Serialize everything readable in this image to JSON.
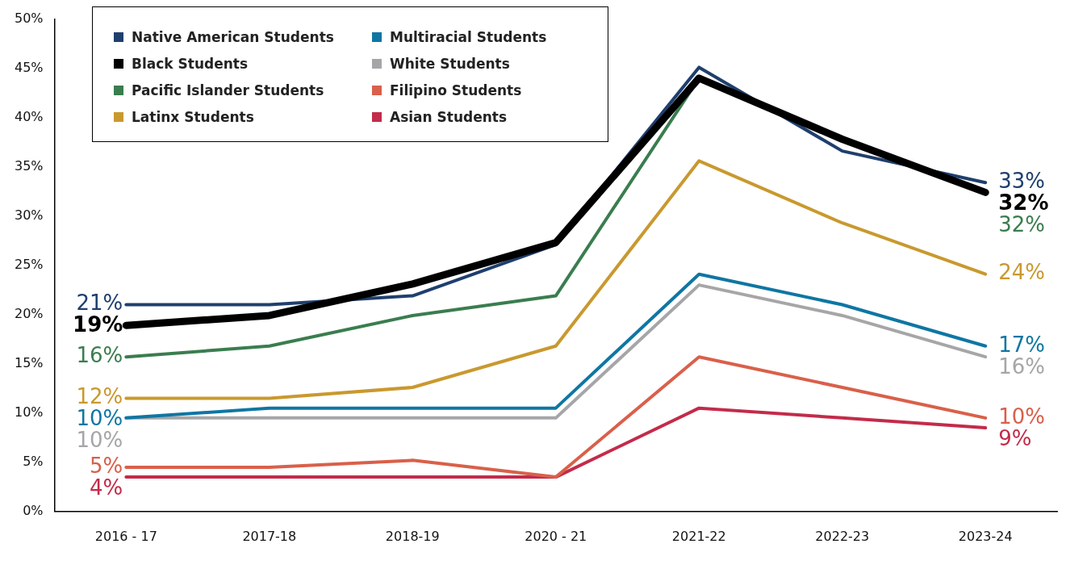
{
  "chart_data": {
    "type": "line",
    "categories": [
      "2016 - 17",
      "2017-18",
      "2018-19",
      "2020 - 21",
      "2021-22",
      "2022-23",
      "2023-24"
    ],
    "ylim": [
      0,
      50
    ],
    "yticks": [
      {
        "value": 0,
        "label": "0%"
      },
      {
        "value": 5,
        "label": "5%"
      },
      {
        "value": 10,
        "label": "10%"
      },
      {
        "value": 15,
        "label": "15%"
      },
      {
        "value": 20,
        "label": "20%"
      },
      {
        "value": 25,
        "label": "25%"
      },
      {
        "value": 30,
        "label": "30%"
      },
      {
        "value": 35,
        "label": "35%"
      },
      {
        "value": 40,
        "label": "40%"
      },
      {
        "value": 45,
        "label": "45%"
      },
      {
        "value": 50,
        "label": "50%"
      }
    ],
    "grid": false,
    "legend": "top left",
    "marker": "none",
    "line_style": "solid",
    "series": [
      {
        "name": "Native American Students",
        "color": "#1f3f6e",
        "values": [
          21,
          21,
          21.9,
          27.1,
          45.1,
          36.6,
          33.4
        ],
        "value_labels": [
          "21%",
          null,
          null,
          null,
          null,
          null,
          "33%"
        ]
      },
      {
        "name": "Black Students",
        "color": "#000000",
        "values": [
          18.9,
          19.9,
          23.1,
          27.3,
          44,
          37.8,
          32.4
        ],
        "value_labels": [
          "19%",
          null,
          null,
          null,
          null,
          null,
          "32%"
        ]
      },
      {
        "name": "Pacific Islander Students",
        "color": "#3a7d4f",
        "values": [
          15.7,
          16.8,
          19.9,
          21.9,
          44,
          37.8,
          32.4
        ],
        "value_labels": [
          "16%",
          null,
          null,
          null,
          null,
          null,
          "32%"
        ]
      },
      {
        "name": "Latinx Students",
        "color": "#c9992f",
        "values": [
          11.5,
          11.5,
          12.6,
          16.8,
          35.6,
          29.3,
          24.1
        ],
        "value_labels": [
          "12%",
          null,
          null,
          null,
          null,
          null,
          "24%"
        ]
      },
      {
        "name": "Multiracial Students",
        "color": "#0f76a3",
        "values": [
          9.5,
          10.5,
          10.5,
          10.5,
          24.1,
          21,
          16.8
        ],
        "value_labels": [
          "10%",
          null,
          null,
          null,
          null,
          null,
          "17%"
        ]
      },
      {
        "name": "White Students",
        "color": "#a6a6a8",
        "values": [
          9.5,
          9.5,
          9.5,
          9.5,
          23,
          19.9,
          15.7
        ],
        "value_labels": [
          "10%",
          null,
          null,
          null,
          null,
          null,
          "16%"
        ]
      },
      {
        "name": "Filipino Students",
        "color": "#d9604a",
        "values": [
          4.5,
          4.5,
          5.2,
          3.5,
          15.7,
          12.6,
          9.5
        ],
        "value_labels": [
          "5%",
          null,
          null,
          null,
          null,
          null,
          "10%"
        ]
      },
      {
        "name": "Asian Students",
        "color": "#c32b4a",
        "values": [
          3.5,
          3.5,
          3.5,
          3.5,
          10.5,
          9.5,
          8.5
        ],
        "value_labels": [
          "4%",
          null,
          null,
          null,
          null,
          null,
          "9%"
        ]
      }
    ]
  }
}
